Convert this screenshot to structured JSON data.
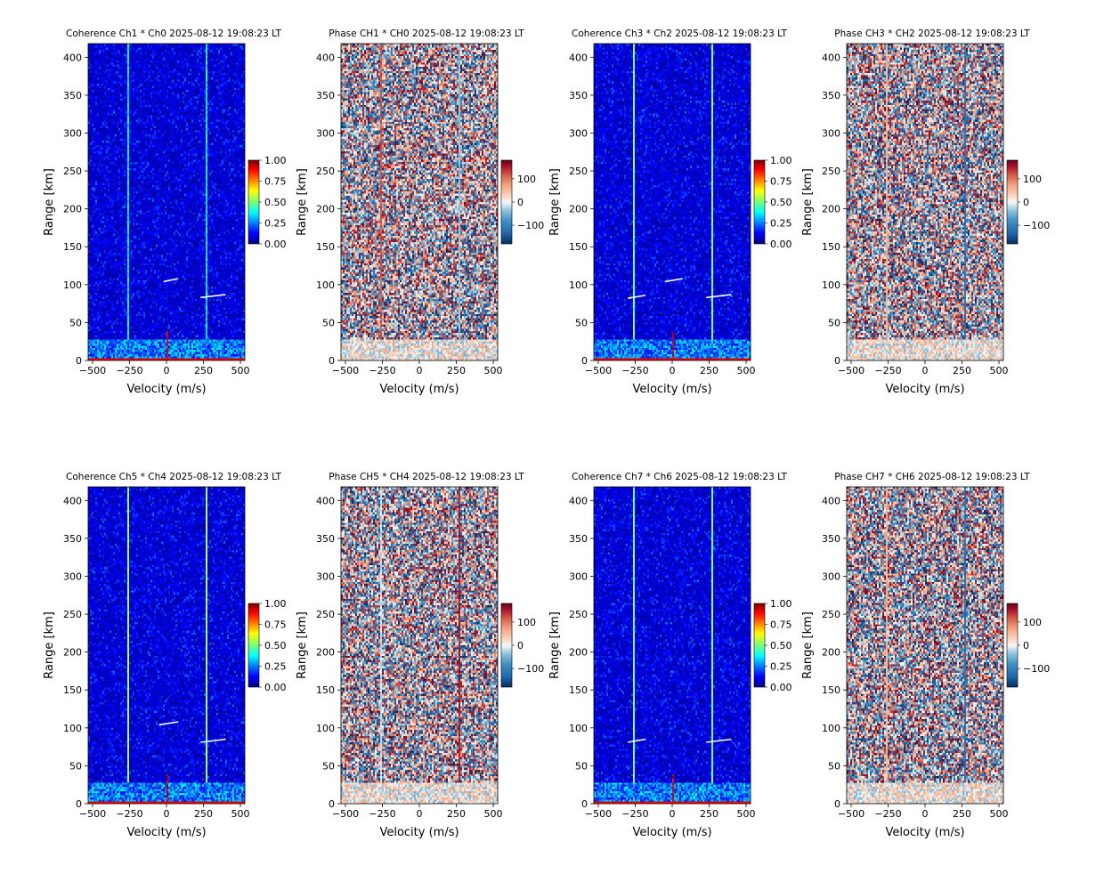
{
  "chart_data": [
    {
      "type": "heatmap",
      "kind": "coherence",
      "colormap": "jet",
      "title": "Coherence Ch1 * Ch0 2025-08-12 19:08:23 LT",
      "xlabel": "Velocity (m/s)",
      "ylabel": "Range [km]",
      "xlim": [
        -530,
        530
      ],
      "ylim": [
        0,
        418
      ],
      "xticks": [
        "−500",
        "−250",
        "0",
        "250",
        "500"
      ],
      "yticks": [
        "0",
        "50",
        "100",
        "150",
        "200",
        "250",
        "300",
        "350",
        "400"
      ],
      "colorbar": {
        "range": [
          0,
          1
        ],
        "ticks": [
          "0.00",
          "0.25",
          "0.50",
          "0.75",
          "1.00"
        ]
      },
      "bright_lines_velocity": [
        -265,
        265
      ],
      "line_strength": 0.3,
      "features": [
        {
          "range_km": 85,
          "velocity_start": 230,
          "velocity_end": 400
        },
        {
          "range_km": 106,
          "velocity_start": -20,
          "velocity_end": 80
        }
      ]
    },
    {
      "type": "heatmap",
      "kind": "phase",
      "colormap": "RdBu_r",
      "title": "Phase CH1 * CH0 2025-08-12 19:08:23 LT",
      "xlabel": "Velocity (m/s)",
      "ylabel": "Range [km]",
      "xlim": [
        -530,
        530
      ],
      "ylim": [
        0,
        418
      ],
      "xticks": [
        "−500",
        "−250",
        "0",
        "250",
        "500"
      ],
      "yticks": [
        "0",
        "50",
        "100",
        "150",
        "200",
        "250",
        "300",
        "350",
        "400"
      ],
      "colorbar": {
        "range": [
          -180,
          180
        ],
        "ticks": [
          "−100",
          "0",
          "100"
        ]
      },
      "line_velocity": [
        -265,
        265
      ],
      "line_values": [
        120,
        -40
      ]
    },
    {
      "type": "heatmap",
      "kind": "coherence",
      "colormap": "jet",
      "title": "Coherence Ch3 * Ch2 2025-08-12 19:08:23 LT",
      "xlabel": "Velocity (m/s)",
      "ylabel": "Range [km]",
      "xlim": [
        -530,
        530
      ],
      "ylim": [
        0,
        418
      ],
      "xticks": [
        "−500",
        "−250",
        "0",
        "250",
        "500"
      ],
      "yticks": [
        "0",
        "50",
        "100",
        "150",
        "200",
        "250",
        "300",
        "350",
        "400"
      ],
      "colorbar": {
        "range": [
          0,
          1
        ],
        "ticks": [
          "0.00",
          "0.25",
          "0.50",
          "0.75",
          "1.00"
        ]
      },
      "bright_lines_velocity": [
        -265,
        265
      ],
      "line_strength": 0.45,
      "features": [
        {
          "range_km": 85,
          "velocity_start": 230,
          "velocity_end": 400
        },
        {
          "range_km": 84,
          "velocity_start": -300,
          "velocity_end": -180
        },
        {
          "range_km": 106,
          "velocity_start": -50,
          "velocity_end": 70
        }
      ]
    },
    {
      "type": "heatmap",
      "kind": "phase",
      "colormap": "RdBu_r",
      "title": "Phase CH3 * CH2 2025-08-12 19:08:23 LT",
      "xlabel": "Velocity (m/s)",
      "ylabel": "Range [km]",
      "xlim": [
        -530,
        530
      ],
      "ylim": [
        0,
        418
      ],
      "xticks": [
        "−500",
        "−250",
        "0",
        "250",
        "500"
      ],
      "yticks": [
        "0",
        "50",
        "100",
        "150",
        "200",
        "250",
        "300",
        "350",
        "400"
      ],
      "colorbar": {
        "range": [
          -180,
          180
        ],
        "ticks": [
          "−100",
          "0",
          "100"
        ]
      },
      "line_velocity": [
        -265,
        265
      ],
      "line_values": [
        60,
        -120
      ]
    },
    {
      "type": "heatmap",
      "kind": "coherence",
      "colormap": "jet",
      "title": "Coherence Ch5 * Ch4 2025-08-12 19:08:23 LT",
      "xlabel": "Velocity (m/s)",
      "ylabel": "Range [km]",
      "xlim": [
        -530,
        530
      ],
      "ylim": [
        0,
        418
      ],
      "xticks": [
        "−500",
        "−250",
        "0",
        "250",
        "500"
      ],
      "yticks": [
        "0",
        "50",
        "100",
        "150",
        "200",
        "250",
        "300",
        "350",
        "400"
      ],
      "colorbar": {
        "range": [
          0,
          1
        ],
        "ticks": [
          "0.00",
          "0.25",
          "0.50",
          "0.75",
          "1.00"
        ]
      },
      "bright_lines_velocity": [
        -265,
        265
      ],
      "line_strength": 0.5,
      "features": [
        {
          "range_km": 83,
          "velocity_start": 230,
          "velocity_end": 400
        },
        {
          "range_km": 106,
          "velocity_start": -50,
          "velocity_end": 80
        }
      ]
    },
    {
      "type": "heatmap",
      "kind": "phase",
      "colormap": "RdBu_r",
      "title": "Phase CH5 * CH4 2025-08-12 19:08:23 LT",
      "xlabel": "Velocity (m/s)",
      "ylabel": "Range [km]",
      "xlim": [
        -530,
        530
      ],
      "ylim": [
        0,
        418
      ],
      "xticks": [
        "−500",
        "−250",
        "0",
        "250",
        "500"
      ],
      "yticks": [
        "0",
        "50",
        "100",
        "150",
        "200",
        "250",
        "300",
        "350",
        "400"
      ],
      "colorbar": {
        "range": [
          -180,
          180
        ],
        "ticks": [
          "−100",
          "0",
          "100"
        ]
      },
      "line_velocity": [
        -265,
        265
      ],
      "line_values": [
        -20,
        150
      ]
    },
    {
      "type": "heatmap",
      "kind": "coherence",
      "colormap": "jet",
      "title": "Coherence Ch7 * Ch6 2025-08-12 19:08:23 LT",
      "xlabel": "Velocity (m/s)",
      "ylabel": "Range [km]",
      "xlim": [
        -530,
        530
      ],
      "ylim": [
        0,
        418
      ],
      "xticks": [
        "−500",
        "−250",
        "0",
        "250",
        "500"
      ],
      "yticks": [
        "0",
        "50",
        "100",
        "150",
        "200",
        "250",
        "300",
        "350",
        "400"
      ],
      "colorbar": {
        "range": [
          0,
          1
        ],
        "ticks": [
          "0.00",
          "0.25",
          "0.50",
          "0.75",
          "1.00"
        ]
      },
      "bright_lines_velocity": [
        -265,
        265
      ],
      "line_strength": 0.45,
      "features": [
        {
          "range_km": 83,
          "velocity_start": 230,
          "velocity_end": 400
        },
        {
          "range_km": 83,
          "velocity_start": -300,
          "velocity_end": -180
        }
      ]
    },
    {
      "type": "heatmap",
      "kind": "phase",
      "colormap": "RdBu_r",
      "title": "Phase CH7 * CH6 2025-08-12 19:08:23 LT",
      "xlabel": "Velocity (m/s)",
      "ylabel": "Range [km]",
      "xlim": [
        -530,
        530
      ],
      "ylim": [
        0,
        418
      ],
      "xticks": [
        "−500",
        "−250",
        "0",
        "250",
        "500"
      ],
      "yticks": [
        "0",
        "50",
        "100",
        "150",
        "200",
        "250",
        "300",
        "350",
        "400"
      ],
      "colorbar": {
        "range": [
          -180,
          180
        ],
        "ticks": [
          "−100",
          "0",
          "100"
        ]
      },
      "line_velocity": [
        -265,
        265
      ],
      "line_values": [
        60,
        -120
      ]
    }
  ]
}
